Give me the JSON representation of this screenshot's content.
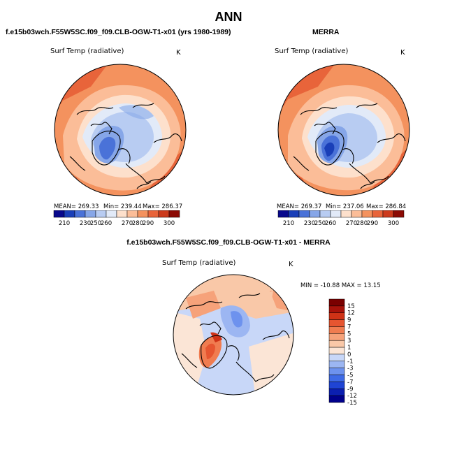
{
  "page": {
    "title": "ANN",
    "case_title": "f.e15b03wch.F55W5SC.f09_f09.CLB-OGW-T1-x01 (yrs 1980-1989)",
    "obs_title": "MERRA",
    "diff_title": "f.e15b03wch.F55W5SC.f09_f09.CLB-OGW-T1-x01 - MERRA"
  },
  "colors": {
    "abs_scale": [
      "#08088c",
      "#1a3fb8",
      "#4a72d8",
      "#86a6e8",
      "#b8ccf2",
      "#e2eaf8",
      "#fde0cc",
      "#fbbd98",
      "#f4925e",
      "#e8643a",
      "#cc3a1c",
      "#8c0a04"
    ],
    "diff_scale": [
      "#00008b",
      "#0b1fb0",
      "#1f44d4",
      "#3e6ae6",
      "#6d92ee",
      "#9cb6f2",
      "#c8d7f8",
      "#fbe5d6",
      "#f9c8a8",
      "#f6a27a",
      "#f07c50",
      "#e65530",
      "#cf3216",
      "#a8120a",
      "#7a0000"
    ],
    "land": "#000000"
  },
  "chart_data": [
    {
      "type": "heatmap",
      "title": "f.e15b03wch.F55W5SC.f09_f09.CLB-OGW-T1-x01 (yrs 1980-1989)",
      "variable": "Surf Temp (radiative)",
      "units": "K",
      "projection": "north-polar-stereographic",
      "mean": "269.33",
      "min": "239.44",
      "max": "286.37",
      "mean_label": "MEAN= 269.33",
      "min_label": "Min= 239.44",
      "max_label": "Max= 286.37",
      "colorbar_ticks": [
        "210",
        "230",
        "250",
        "260",
        "270",
        "280",
        "290",
        "300"
      ],
      "colorbar_orientation": "horizontal"
    },
    {
      "type": "heatmap",
      "title": "MERRA",
      "variable": "Surf Temp (radiative)",
      "units": "K",
      "projection": "north-polar-stereographic",
      "mean": "269.37",
      "min": "237.06",
      "max": "286.84",
      "mean_label": "MEAN= 269.37",
      "min_label": "Min= 237.06",
      "max_label": "Max= 286.84",
      "colorbar_ticks": [
        "210",
        "230",
        "250",
        "260",
        "270",
        "280",
        "290",
        "300"
      ],
      "colorbar_orientation": "horizontal"
    },
    {
      "type": "heatmap",
      "title": "f.e15b03wch.F55W5SC.f09_f09.CLB-OGW-T1-x01 - MERRA",
      "variable": "Surf Temp (radiative)",
      "units": "K",
      "projection": "north-polar-stereographic",
      "min": "-10.88",
      "max": "13.15",
      "minmax_label": "MIN = -10.88 MAX = 13.15",
      "colorbar_ticks": [
        "15",
        "12",
        "9",
        "7",
        "5",
        "3",
        "1",
        "0",
        "-1",
        "-3",
        "-5",
        "-7",
        "-9",
        "-12",
        "-15"
      ],
      "colorbar_orientation": "vertical"
    }
  ]
}
